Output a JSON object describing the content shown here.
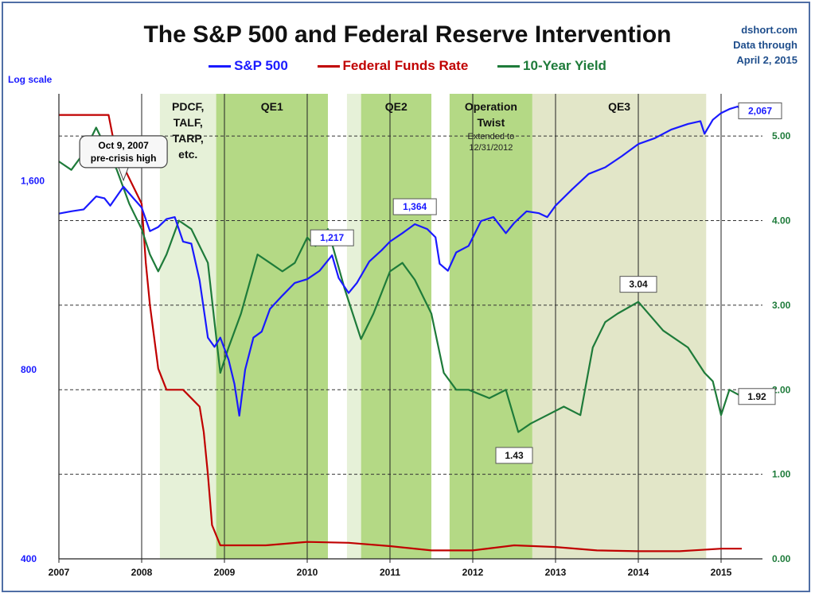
{
  "header": {
    "title": "The S&P 500 and Federal Reserve Intervention",
    "source_lines": [
      "dshort.com",
      "Data through",
      "April 2, 2015"
    ]
  },
  "colors": {
    "sp500": "#1a1aff",
    "fed_funds": "#c00000",
    "ten_year": "#1e7b3a",
    "band_light": "#e6f1d8",
    "band_mid": "#c8e2a6",
    "band_qe": "#b4d985",
    "band_qe3": "#e2e6c8"
  },
  "chart_data": {
    "type": "line",
    "title": "The S&P 500 and Federal Reserve Intervention",
    "left_axis": {
      "label": "Log scale",
      "scale": "log",
      "range": [
        400,
        2200
      ],
      "ticks": [
        {
          "value": 400,
          "label": "400"
        },
        {
          "value": 800,
          "label": "800"
        },
        {
          "value": 1600,
          "label": "1,600"
        }
      ]
    },
    "right_axis": {
      "range": [
        0,
        5.5
      ],
      "ticks": [
        {
          "value": 0,
          "label": "0.00"
        },
        {
          "value": 1,
          "label": "1.00"
        },
        {
          "value": 2,
          "label": "2.00"
        },
        {
          "value": 3,
          "label": "3.00"
        },
        {
          "value": 4,
          "label": "4.00"
        },
        {
          "value": 5,
          "label": "5.00"
        }
      ]
    },
    "x_axis": {
      "range": [
        2007.0,
        2015.5
      ],
      "ticks": [
        {
          "value": 2007,
          "label": "2007"
        },
        {
          "value": 2008,
          "label": "2008"
        },
        {
          "value": 2009,
          "label": "2009"
        },
        {
          "value": 2010,
          "label": "2010"
        },
        {
          "value": 2011,
          "label": "2011"
        },
        {
          "value": 2012,
          "label": "2012"
        },
        {
          "value": 2013,
          "label": "2013"
        },
        {
          "value": 2014,
          "label": "2014"
        },
        {
          "value": 2015,
          "label": "2015"
        }
      ]
    },
    "bands": [
      {
        "label": [
          "PDCF,",
          "TALF,",
          "TARP,",
          "etc."
        ],
        "sub": [],
        "x0": 2008.22,
        "x1": 2008.9,
        "tone": "band_light"
      },
      {
        "label": [
          "QE1"
        ],
        "sub": [],
        "x0": 2008.9,
        "x1": 2010.25,
        "tone": "band_qe"
      },
      {
        "label": [
          "QE2"
        ],
        "sub": [],
        "x0": 2010.65,
        "x1": 2011.5,
        "tone": "band_qe"
      },
      {
        "label": [
          "Operation",
          "Twist"
        ],
        "sub": [
          "Extended to",
          "12/31/2012"
        ],
        "x0": 2011.72,
        "x1": 2012.72,
        "tone": "band_qe"
      },
      {
        "label": [
          "QE3"
        ],
        "sub": [],
        "x0": 2012.72,
        "x1": 2014.82,
        "tone": "band_qe3"
      }
    ],
    "vertical_lines": [
      2008.0,
      2009.0,
      2010.0,
      2011.0,
      2012.0,
      2013.0,
      2014.0,
      2015.0
    ],
    "annotations": [
      {
        "text": [
          "Oct 9, 2007",
          "pre-crisis high"
        ],
        "x": 2007.78,
        "y": 1565,
        "axis": "left",
        "style": "callout"
      },
      {
        "text": [
          "1,217"
        ],
        "x": 2010.3,
        "y": 1217,
        "axis": "left",
        "style": "blue"
      },
      {
        "text": [
          "1,364"
        ],
        "x": 2011.3,
        "y": 1364,
        "axis": "left",
        "style": "blue"
      },
      {
        "text": [
          "2,067"
        ],
        "x": 2015.25,
        "y": 2067,
        "axis": "left",
        "style": "blue"
      },
      {
        "text": [
          "3.04"
        ],
        "x": 2014.0,
        "y": 3.04,
        "axis": "right",
        "style": "black"
      },
      {
        "text": [
          "1.43"
        ],
        "x": 2012.5,
        "y": 1.43,
        "axis": "right",
        "style": "black"
      },
      {
        "text": [
          "1.92"
        ],
        "x": 2015.25,
        "y": 1.92,
        "axis": "right",
        "style": "black"
      }
    ],
    "series": [
      {
        "name": "S&P 500",
        "axis": "left",
        "x": [
          2007.0,
          2007.15,
          2007.3,
          2007.45,
          2007.55,
          2007.62,
          2007.78,
          2007.9,
          2008.0,
          2008.1,
          2008.2,
          2008.3,
          2008.4,
          2008.5,
          2008.6,
          2008.7,
          2008.76,
          2008.8,
          2008.88,
          2008.95,
          2009.05,
          2009.12,
          2009.18,
          2009.25,
          2009.35,
          2009.45,
          2009.55,
          2009.7,
          2009.85,
          2010.0,
          2010.15,
          2010.3,
          2010.38,
          2010.5,
          2010.6,
          2010.75,
          2010.9,
          2011.0,
          2011.15,
          2011.3,
          2011.45,
          2011.55,
          2011.6,
          2011.7,
          2011.8,
          2011.95,
          2012.1,
          2012.25,
          2012.4,
          2012.5,
          2012.65,
          2012.8,
          2012.9,
          2013.0,
          2013.2,
          2013.4,
          2013.6,
          2013.8,
          2014.0,
          2014.2,
          2014.4,
          2014.6,
          2014.75,
          2014.8,
          2014.9,
          2015.0,
          2015.1,
          2015.2,
          2015.25
        ],
        "values": [
          1418,
          1430,
          1440,
          1510,
          1500,
          1460,
          1565,
          1500,
          1450,
          1330,
          1350,
          1390,
          1400,
          1280,
          1270,
          1110,
          980,
          900,
          870,
          900,
          830,
          760,
          676,
          800,
          900,
          920,
          1000,
          1050,
          1100,
          1115,
          1150,
          1217,
          1120,
          1060,
          1100,
          1190,
          1240,
          1280,
          1320,
          1364,
          1340,
          1300,
          1180,
          1150,
          1230,
          1260,
          1380,
          1400,
          1320,
          1370,
          1430,
          1420,
          1400,
          1460,
          1550,
          1640,
          1680,
          1750,
          1830,
          1870,
          1930,
          1970,
          1990,
          1900,
          2000,
          2050,
          2080,
          2100,
          2067
        ]
      },
      {
        "name": "Federal Funds Rate",
        "axis": "right",
        "x": [
          2007.0,
          2007.6,
          2007.7,
          2007.8,
          2007.95,
          2008.0,
          2008.05,
          2008.1,
          2008.2,
          2008.3,
          2008.5,
          2008.7,
          2008.75,
          2008.8,
          2008.85,
          2008.95,
          2009.5,
          2010.0,
          2010.5,
          2011.0,
          2011.5,
          2012.0,
          2012.5,
          2013.0,
          2013.5,
          2014.0,
          2014.5,
          2015.0,
          2015.25
        ],
        "values": [
          5.25,
          5.25,
          4.75,
          4.6,
          4.3,
          4.2,
          3.5,
          3.0,
          2.25,
          2.0,
          2.0,
          1.8,
          1.5,
          1.0,
          0.4,
          0.16,
          0.16,
          0.2,
          0.19,
          0.15,
          0.1,
          0.1,
          0.16,
          0.14,
          0.1,
          0.09,
          0.09,
          0.12,
          0.12
        ]
      },
      {
        "name": "10-Year Yield",
        "axis": "right",
        "x": [
          2007.0,
          2007.15,
          2007.3,
          2007.45,
          2007.55,
          2007.7,
          2007.85,
          2008.0,
          2008.1,
          2008.2,
          2008.3,
          2008.45,
          2008.6,
          2008.7,
          2008.8,
          2008.88,
          2008.95,
          2009.05,
          2009.2,
          2009.4,
          2009.55,
          2009.7,
          2009.85,
          2010.0,
          2010.1,
          2010.25,
          2010.45,
          2010.65,
          2010.8,
          2011.0,
          2011.15,
          2011.3,
          2011.5,
          2011.65,
          2011.8,
          2011.95,
          2012.2,
          2012.4,
          2012.55,
          2012.7,
          2012.9,
          2013.1,
          2013.3,
          2013.45,
          2013.6,
          2013.75,
          2014.0,
          2014.3,
          2014.6,
          2014.8,
          2014.9,
          2015.0,
          2015.1,
          2015.25
        ],
        "values": [
          4.7,
          4.6,
          4.8,
          5.1,
          4.9,
          4.6,
          4.2,
          3.9,
          3.6,
          3.4,
          3.6,
          4.0,
          3.9,
          3.7,
          3.5,
          2.8,
          2.2,
          2.5,
          2.9,
          3.6,
          3.5,
          3.4,
          3.5,
          3.8,
          3.7,
          3.9,
          3.2,
          2.6,
          2.9,
          3.4,
          3.5,
          3.3,
          2.9,
          2.2,
          2.0,
          2.0,
          1.9,
          2.0,
          1.5,
          1.6,
          1.7,
          1.8,
          1.7,
          2.5,
          2.8,
          2.9,
          3.04,
          2.7,
          2.5,
          2.2,
          2.1,
          1.7,
          2.0,
          1.92
        ]
      }
    ]
  }
}
